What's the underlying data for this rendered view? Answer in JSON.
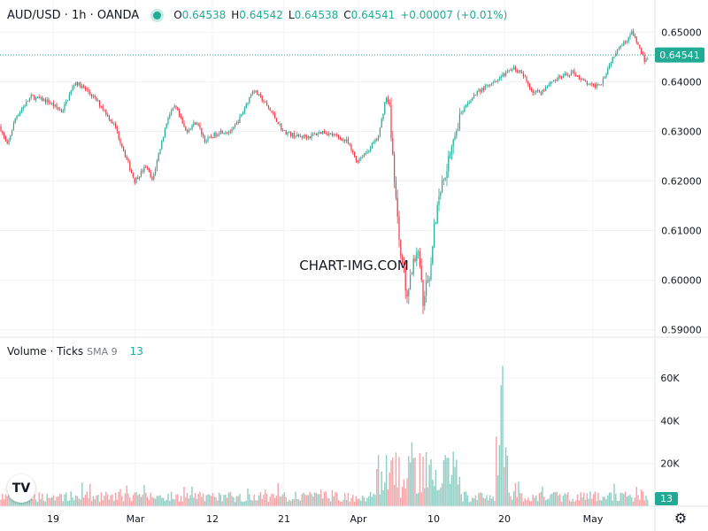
{
  "header": {
    "symbol": "AUD/USD · 1h · OANDA",
    "open_label": "O",
    "open": "0.64538",
    "high_label": "H",
    "high": "0.64542",
    "low_label": "L",
    "low": "0.64538",
    "close_label": "C",
    "close": "0.64541",
    "change": "+0.00007 (+0.01%)"
  },
  "volume_panel": {
    "title": "Volume · Ticks",
    "sma_label": "SMA 9",
    "sma_value": "13",
    "last_badge": "13"
  },
  "watermark": "CHART-IMG.COM",
  "logo_text": "TV",
  "colors": {
    "up": "#22ab94",
    "down": "#f23645",
    "up_volume": "#8fcdc2",
    "down_volume": "#f4a3a7",
    "grid": "#f0f3fa",
    "last_price_line": "#22ab94"
  },
  "chart_data": {
    "type": "candlestick",
    "price_axis": {
      "ticks": [
        "0.65000",
        "0.64000",
        "0.63000",
        "0.62000",
        "0.61000",
        "0.60000",
        "0.59000"
      ],
      "range": [
        0.5885,
        0.6565
      ],
      "last_price": "0.64541"
    },
    "volume_axis": {
      "ticks": [
        "60K",
        "40K",
        "20K"
      ],
      "range": [
        0,
        72000
      ]
    },
    "x_ticks": [
      "19",
      "Mar",
      "12",
      "21",
      "Apr",
      "10",
      "20",
      "May"
    ],
    "close_path": [
      [
        0,
        0.631
      ],
      [
        8,
        0.627
      ],
      [
        18,
        0.633
      ],
      [
        35,
        0.637
      ],
      [
        55,
        0.636
      ],
      [
        70,
        0.634
      ],
      [
        85,
        0.64
      ],
      [
        100,
        0.638
      ],
      [
        115,
        0.635
      ],
      [
        130,
        0.631
      ],
      [
        142,
        0.625
      ],
      [
        152,
        0.62
      ],
      [
        165,
        0.623
      ],
      [
        172,
        0.62
      ],
      [
        180,
        0.626
      ],
      [
        190,
        0.633
      ],
      [
        198,
        0.635
      ],
      [
        210,
        0.63
      ],
      [
        222,
        0.632
      ],
      [
        232,
        0.628
      ],
      [
        248,
        0.63
      ],
      [
        262,
        0.63
      ],
      [
        272,
        0.633
      ],
      [
        286,
        0.6385
      ],
      [
        298,
        0.636
      ],
      [
        310,
        0.633
      ],
      [
        320,
        0.63
      ],
      [
        335,
        0.629
      ],
      [
        350,
        0.629
      ],
      [
        365,
        0.63
      ],
      [
        380,
        0.629
      ],
      [
        392,
        0.628
      ],
      [
        403,
        0.624
      ],
      [
        415,
        0.626
      ],
      [
        428,
        0.629
      ],
      [
        436,
        0.637
      ],
      [
        440,
        0.635
      ],
      [
        445,
        0.622
      ],
      [
        450,
        0.61
      ],
      [
        455,
        0.603
      ],
      [
        460,
        0.597
      ],
      [
        465,
        0.602
      ],
      [
        472,
        0.606
      ],
      [
        478,
        0.596
      ],
      [
        485,
        0.601
      ],
      [
        490,
        0.61
      ],
      [
        497,
        0.618
      ],
      [
        505,
        0.623
      ],
      [
        512,
        0.629
      ],
      [
        520,
        0.633
      ],
      [
        530,
        0.636
      ],
      [
        540,
        0.638
      ],
      [
        550,
        0.639
      ],
      [
        562,
        0.64
      ],
      [
        572,
        0.642
      ],
      [
        580,
        0.643
      ],
      [
        592,
        0.641
      ],
      [
        602,
        0.638
      ],
      [
        612,
        0.638
      ],
      [
        622,
        0.64
      ],
      [
        635,
        0.641
      ],
      [
        648,
        0.642
      ],
      [
        660,
        0.64
      ],
      [
        670,
        0.639
      ],
      [
        680,
        0.64
      ],
      [
        690,
        0.644
      ],
      [
        698,
        0.647
      ],
      [
        706,
        0.648
      ],
      [
        714,
        0.65
      ],
      [
        722,
        0.647
      ],
      [
        729,
        0.644
      ],
      [
        733,
        0.6454
      ]
    ]
  }
}
